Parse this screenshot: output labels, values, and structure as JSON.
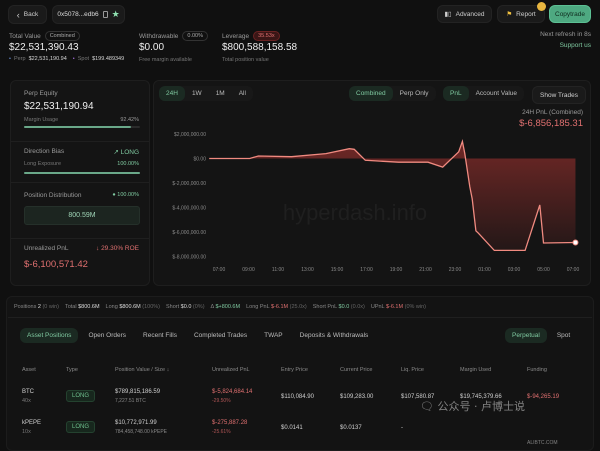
{
  "header": {
    "back_label": "Back",
    "address": "0x5078...edb6",
    "advanced_label": "Advanced",
    "report_label": "Report",
    "copytrade_label": "Copytrade",
    "next_refresh": "Next refresh in 8s",
    "support": "Support us"
  },
  "summary": {
    "total_value_label": "Total Value",
    "total_value_badge": "Combined",
    "total_value": "$22,531,390.43",
    "perp_label": "Perp",
    "perp_value": "$22,531,190.94",
    "spot_label": "Spot",
    "spot_value": "$199.489349",
    "withdrawable_label": "Withdrawable",
    "withdrawable_badge": "0.00%",
    "withdrawable": "$0.00",
    "withdrawable_sub": "Free margin available",
    "leverage_label": "Leverage",
    "leverage_badge": "35.53x",
    "leverage_value": "$800,588,158.58",
    "leverage_sub": "Total position value"
  },
  "left": {
    "perp_equity_label": "Perp Equity",
    "perp_equity": "$22,531,190.94",
    "margin_usage_label": "Margin Usage",
    "margin_usage": "92.42%",
    "margin_usage_pct": 92.42,
    "direction_label": "Direction Bias",
    "direction": "LONG",
    "long_exposure_label": "Long Exposure",
    "long_exposure": "100.00%",
    "long_exposure_pct": 100,
    "distribution_label": "Position Distribution",
    "distribution_pct": "100.00%",
    "distribution_value": "800.59M",
    "upnl_label": "Unrealized PnL",
    "roe": "29.30% ROE",
    "upnl": "$-6,100,571.42"
  },
  "chart_controls": {
    "ranges": [
      "24H",
      "1W",
      "1M",
      "All"
    ],
    "active_range": "24H",
    "modes": [
      "Combined",
      "Perp Only"
    ],
    "active_mode": "Combined",
    "metrics": [
      "PnL",
      "Account Value"
    ],
    "active_metric": "PnL",
    "show_trades": "Show Trades"
  },
  "chart_data": {
    "type": "area",
    "title": "24H PnL (Combined)",
    "headline_value": "$-6,856,185.31",
    "watermark": "hyperdash.info",
    "y_ticks": [
      "$2,000,000.00",
      "$0.00",
      "$-2,000,000.00",
      "$-4,000,000.00",
      "$-6,000,000.00",
      "$-8,000,000.00"
    ],
    "y_tick_values": [
      2000000,
      0,
      -2000000,
      -4000000,
      -6000000,
      -8000000
    ],
    "x_ticks": [
      "07:00",
      "09:00",
      "11:00",
      "13:00",
      "15:00",
      "17:00",
      "19:00",
      "21:00",
      "23:00",
      "01:00",
      "03:00",
      "05:00",
      "07:00"
    ],
    "ylim": [
      -8000000,
      2000000
    ],
    "grid": false,
    "points": [
      [
        "06:20",
        0
      ],
      [
        "09:05",
        0
      ],
      [
        "09:40",
        200000
      ],
      [
        "11:55",
        150000
      ],
      [
        "14:15",
        400000
      ],
      [
        "15:50",
        800000
      ],
      [
        "16:10",
        750000
      ],
      [
        "16:55",
        -150000
      ],
      [
        "19:10",
        -300000
      ],
      [
        "21:10",
        -300000
      ],
      [
        "22:10",
        -700000
      ],
      [
        "23:15",
        550000
      ],
      [
        "23:30",
        1400000
      ],
      [
        "23:40",
        400000
      ],
      [
        "00:00",
        -2300000
      ],
      [
        "00:10",
        -3300000
      ],
      [
        "00:25",
        -5900000
      ],
      [
        "00:35",
        -6100000
      ],
      [
        "01:40",
        -7500000
      ],
      [
        "03:45",
        -7500000
      ],
      [
        "04:45",
        -3800000
      ],
      [
        "05:00",
        -6900000
      ],
      [
        "07:10",
        -6856185.31
      ]
    ],
    "line_color": "#f08a80",
    "fill_color": "#7a2a28"
  },
  "stats": [
    {
      "label": "Positions",
      "value": "2",
      "extra": "(0 win)",
      "color": "#dddddd"
    },
    {
      "label": "Total",
      "value": "$800.6M",
      "extra": "",
      "color": "#dddddd"
    },
    {
      "label": "Long",
      "value": "$800.6M",
      "extra": "(100%)",
      "color": "#dddddd"
    },
    {
      "label": "Short",
      "value": "$0.0",
      "extra": "(0%)",
      "color": "#dddddd"
    },
    {
      "label": "Δ",
      "value": "$+800.6M",
      "extra": "",
      "color": "#7fc9a0"
    },
    {
      "label": "Long PnL",
      "value": "$-6.1M",
      "extra": "(25.0x)",
      "color": "#e07070"
    },
    {
      "label": "Short PnL",
      "value": "$0.0",
      "extra": "(0.0x)",
      "color": "#7fc9a0"
    },
    {
      "label": "UPnL",
      "value": "$-6.1M",
      "extra": "(0% win)",
      "color": "#e07070"
    }
  ],
  "tabs": {
    "items": [
      "Asset Positions",
      "Open Orders",
      "Recent Fills",
      "Completed Trades",
      "TWAP",
      "Deposits & Withdrawals"
    ],
    "active": "Asset Positions",
    "market": [
      "Perpetual",
      "Spot"
    ],
    "active_market": "Perpetual"
  },
  "table": {
    "headers": [
      "Asset",
      "Type",
      "Position Value / Size ↓",
      "Unrealized PnL",
      "Entry Price",
      "Current Price",
      "Liq. Price",
      "Margin Used",
      "Funding"
    ],
    "rows": [
      {
        "asset": "BTC",
        "lev": "40x",
        "type": "LONG",
        "value": "$789,815,186.59",
        "size": "7,227.51 BTC",
        "pnl": "$-5,824,684.14",
        "pnl_pct": "-29.50%",
        "entry": "$110,084.90",
        "current": "$109,283.00",
        "liq": "$107,580.87",
        "margin": "$19,745,379.66",
        "funding": "$-94,265.19"
      },
      {
        "asset": "kPEPE",
        "lev": "10x",
        "type": "LONG",
        "value": "$10,772,971.99",
        "size": "784,458,748.00 kPEPE",
        "pnl": "$-275,887.28",
        "pnl_pct": "-25.61%",
        "entry": "$0.0141",
        "current": "$0.0137",
        "liq": "-",
        "margin": "",
        "funding": ""
      }
    ]
  },
  "watermark_logo": {
    "text": "公众号 · 卢博士说",
    "site": "ALIBTC.COM"
  }
}
